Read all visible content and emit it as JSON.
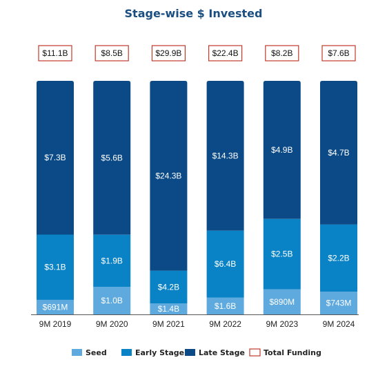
{
  "chart_data": {
    "type": "bar",
    "stacked": true,
    "title": "Stage-wise $ Invested",
    "xlabel": "",
    "ylabel": "",
    "categories": [
      "9M 2019",
      "9M 2020",
      "9M 2021",
      "9M 2022",
      "9M 2023",
      "9M 2024"
    ],
    "series": [
      {
        "name": "Seed",
        "color": "#5ea9dd",
        "values": [
          0.691,
          1.0,
          1.4,
          1.6,
          0.89,
          0.743
        ],
        "labels": [
          "$691M",
          "$1.0B",
          "$1.4B",
          "$1.6B",
          "$890M",
          "$743M"
        ]
      },
      {
        "name": "Early Stage",
        "color": "#0a83c6",
        "values": [
          3.1,
          1.9,
          4.2,
          6.4,
          2.5,
          2.2
        ],
        "labels": [
          "$3.1B",
          "$1.9B",
          "$4.2B",
          "$6.4B",
          "$2.5B",
          "$2.2B"
        ]
      },
      {
        "name": "Late Stage",
        "color": "#0b4a86",
        "values": [
          7.3,
          5.6,
          24.3,
          14.3,
          4.9,
          4.7
        ],
        "labels": [
          "$7.3B",
          "$5.6B",
          "$24.3B",
          "$14.3B",
          "$4.9B",
          "$4.7B"
        ]
      }
    ],
    "totals": {
      "name": "Total Funding",
      "values": [
        11.1,
        8.5,
        29.9,
        22.4,
        8.2,
        7.6
      ],
      "labels": [
        "$11.1B",
        "$8.5B",
        "$29.9B",
        "$22.4B",
        "$8.2B",
        "$7.6B"
      ],
      "color": "#c0392b"
    },
    "normalized_to_100_percent": true,
    "legend": "bottom",
    "grid": false
  }
}
